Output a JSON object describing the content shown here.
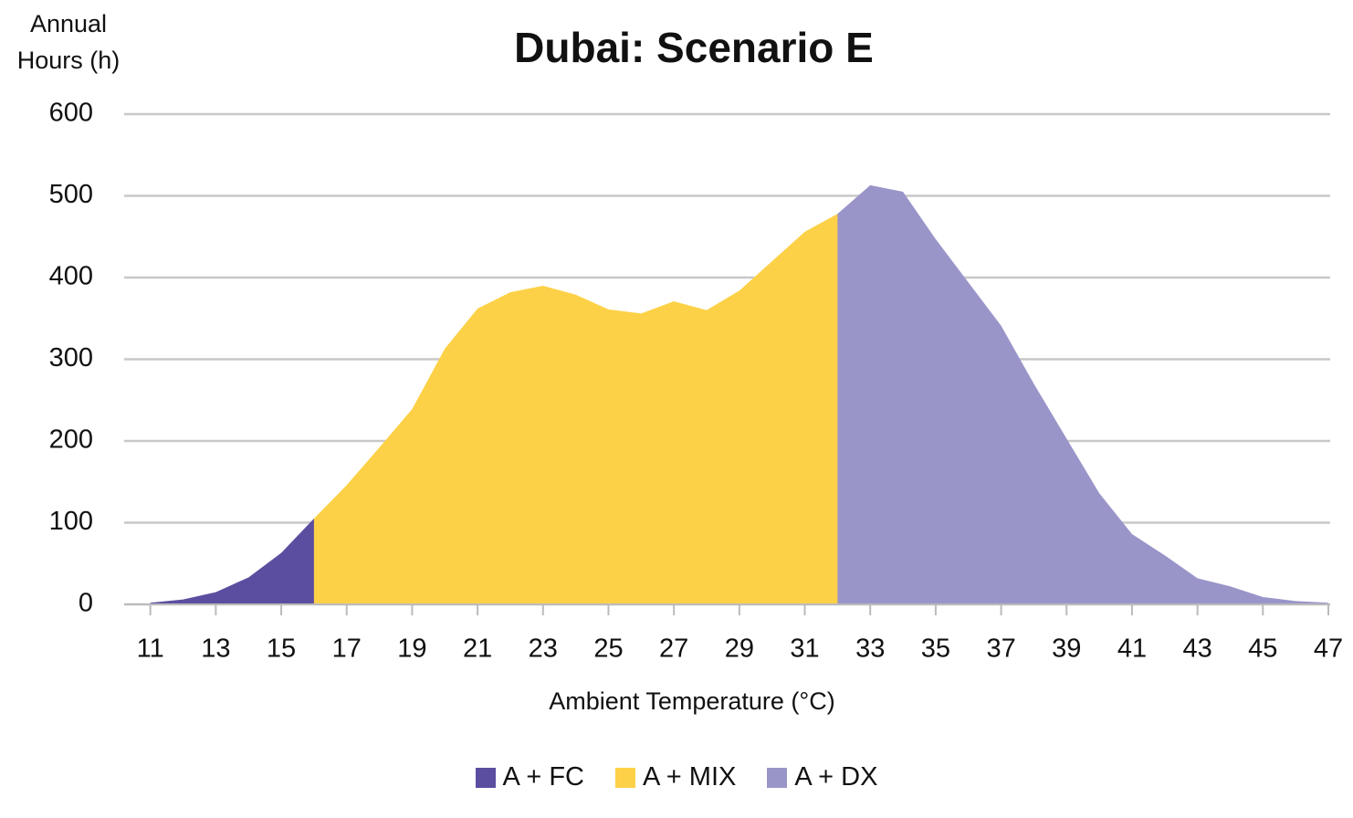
{
  "chart_data": {
    "type": "area",
    "title": "Dubai: Scenario E",
    "ylabel": "Annual Hours (h)",
    "xlabel": "Ambient Temperature (°C)",
    "x": [
      11,
      12,
      13,
      14,
      15,
      16,
      17,
      18,
      19,
      20,
      21,
      22,
      23,
      24,
      25,
      26,
      27,
      28,
      29,
      30,
      31,
      32,
      33,
      34,
      35,
      36,
      37,
      38,
      39,
      40,
      41,
      42,
      43,
      44,
      45,
      46,
      47
    ],
    "series": [
      {
        "name": "A + FC",
        "color": "#5b4ea0",
        "values": [
          2,
          6,
          15,
          33,
          63,
          105,
          0,
          null,
          null,
          null,
          null,
          null,
          null,
          null,
          null,
          null,
          null,
          null,
          null,
          null,
          null,
          null,
          null,
          null,
          null,
          null,
          null,
          null,
          null,
          null,
          null,
          null,
          null,
          null,
          null,
          null,
          null
        ]
      },
      {
        "name": "A + MIX",
        "color": "#fdd147",
        "values": [
          null,
          null,
          null,
          null,
          null,
          105,
          146,
          192,
          239,
          313,
          362,
          382,
          390,
          379,
          361,
          356,
          371,
          360,
          384,
          420,
          456,
          478,
          0,
          null,
          null,
          null,
          null,
          null,
          null,
          null,
          null,
          null,
          null,
          null,
          null,
          null,
          null
        ]
      },
      {
        "name": "A + DX",
        "color": "#9a95c9",
        "values": [
          null,
          null,
          null,
          null,
          null,
          null,
          null,
          null,
          null,
          null,
          null,
          null,
          null,
          null,
          null,
          null,
          null,
          null,
          null,
          null,
          null,
          478,
          513,
          505,
          447,
          394,
          341,
          270,
          203,
          136,
          86,
          60,
          32,
          22,
          9,
          4,
          2
        ]
      }
    ],
    "xlim": [
      10.2,
      47
    ],
    "xticks": [
      11,
      13,
      15,
      17,
      19,
      21,
      23,
      25,
      27,
      29,
      31,
      33,
      35,
      37,
      39,
      41,
      43,
      45,
      47
    ],
    "ylim": [
      0,
      600
    ],
    "yticks": [
      0,
      100,
      200,
      300,
      400,
      500,
      600
    ],
    "grid": true,
    "legend": "bottom"
  }
}
